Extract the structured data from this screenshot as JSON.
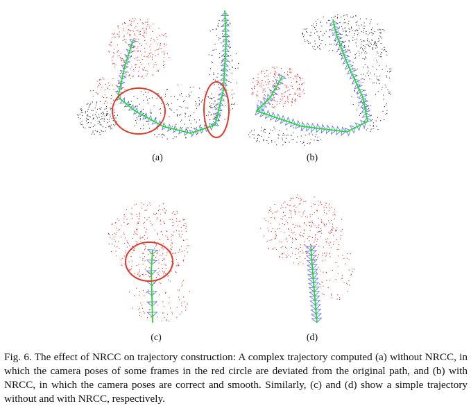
{
  "figure": {
    "panels": [
      {
        "id": "a",
        "label": "(a)"
      },
      {
        "id": "b",
        "label": "(b)"
      },
      {
        "id": "c",
        "label": "(c)"
      },
      {
        "id": "d",
        "label": "(d)"
      }
    ],
    "caption": "Fig. 6.  The effect of NRCC on trajectory construction: A complex trajectory computed (a) without NRCC, in which the camera poses of some frames in the red circle are deviated from the original path, and (b) with NRCC, in which the camera poses are correct and smooth. Similarly, (c) and (d) show a simple trajectory without and with NRCC, respectively."
  },
  "colors": {
    "trajectory": "#22dd22",
    "camera_frustum": "#3355ff",
    "map_points_red": "#e02020",
    "map_points_black": "#222222",
    "highlight_circle": "#e03a2a"
  }
}
